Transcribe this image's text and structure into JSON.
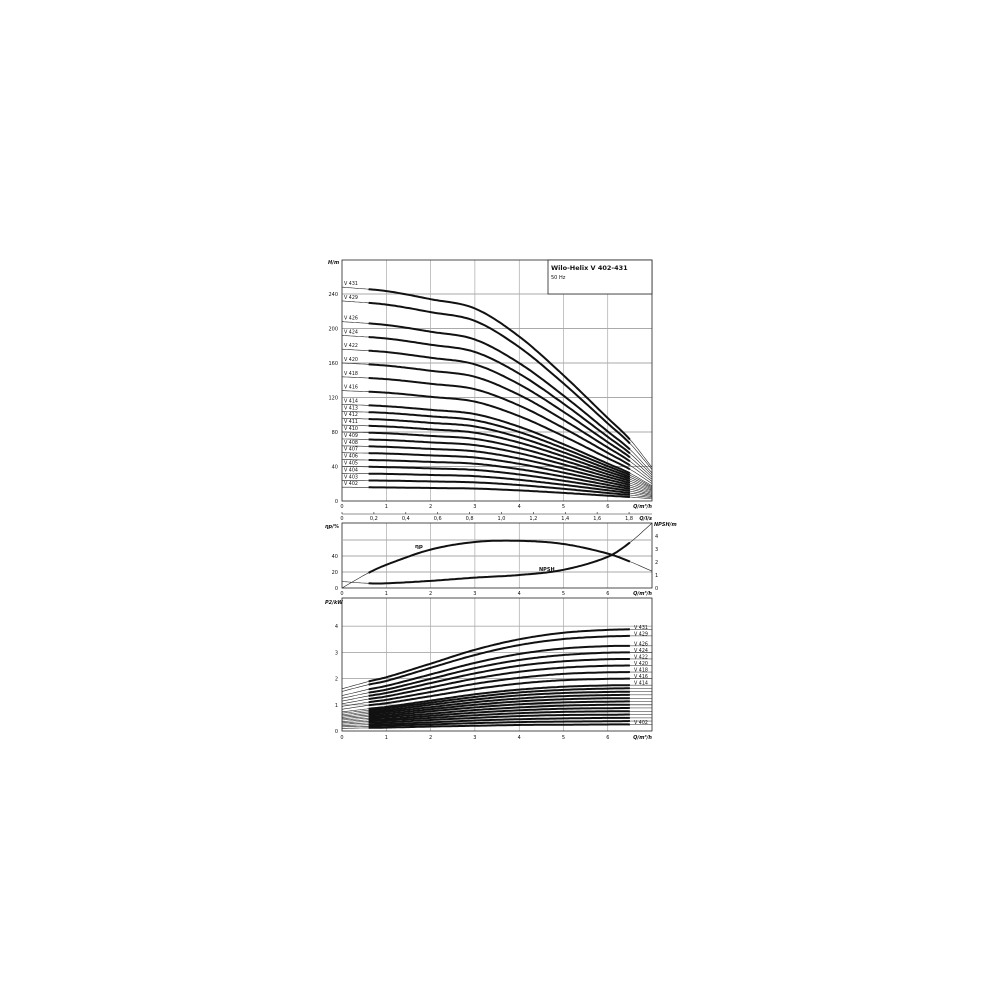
{
  "legend_box": {
    "title": "Wilo-Helix V 402-431",
    "subtitle": "50 Hz"
  },
  "chart_data": [
    {
      "type": "line",
      "ylabel": "H/m",
      "xlabel": "Q/m³/h",
      "secondary_xlabel": "Q/l/s",
      "xlim": [
        0,
        7
      ],
      "ylim": [
        0,
        250
      ],
      "grid": true,
      "x_ticks": [
        "0",
        "1",
        "2",
        "3",
        "4",
        "5",
        "6"
      ],
      "y_ticks": [
        "0",
        "40",
        "80",
        "120",
        "160",
        "200",
        "240"
      ],
      "secondary_x_ticks": [
        "0",
        "0,2",
        "0,4",
        "0,6",
        "0,8",
        "1,0",
        "1,2",
        "1,4",
        "1,6",
        "1,8"
      ],
      "x": [
        0,
        1,
        2,
        3,
        4,
        5,
        6,
        6.5,
        7
      ],
      "series": [
        {
          "name": "V 402",
          "values": [
            16,
            15.7,
            15.1,
            14.4,
            12.3,
            9.4,
            6.2,
            4.6,
            2.5
          ]
        },
        {
          "name": "V 403",
          "values": [
            24,
            23.6,
            22.7,
            21.6,
            18.5,
            14.1,
            9.3,
            6.9,
            3.8
          ]
        },
        {
          "name": "V 404",
          "values": [
            32,
            31.4,
            30.2,
            28.8,
            24.6,
            18.8,
            12.4,
            9.2,
            5
          ]
        },
        {
          "name": "V 405",
          "values": [
            40,
            39.3,
            37.8,
            36,
            30.8,
            23.5,
            15.5,
            11.5,
            6.3
          ]
        },
        {
          "name": "V 406",
          "values": [
            48,
            47.1,
            45.3,
            43.2,
            36.9,
            28.2,
            18.6,
            13.8,
            7.5
          ]
        },
        {
          "name": "V 407",
          "values": [
            56,
            55,
            52.9,
            50.4,
            43.1,
            32.9,
            21.7,
            16.1,
            8.8
          ]
        },
        {
          "name": "V 408",
          "values": [
            64,
            62.8,
            60.4,
            57.6,
            49.2,
            37.6,
            24.8,
            18.4,
            10
          ]
        },
        {
          "name": "V 409",
          "values": [
            72,
            70.7,
            68,
            64.8,
            55.4,
            42.3,
            27.9,
            20.7,
            11.3
          ]
        },
        {
          "name": "V 410",
          "values": [
            80,
            78.5,
            75.5,
            72,
            61.5,
            47,
            31,
            23,
            12.5
          ]
        },
        {
          "name": "V 411",
          "values": [
            88,
            86.4,
            83.1,
            79.2,
            67.7,
            51.7,
            34.1,
            25.3,
            13.8
          ]
        },
        {
          "name": "V 412",
          "values": [
            96,
            94.2,
            90.6,
            86.4,
            73.8,
            56.4,
            37.2,
            27.6,
            15
          ]
        },
        {
          "name": "V 413",
          "values": [
            104,
            102.1,
            98.2,
            93.6,
            80,
            61.1,
            40.3,
            29.9,
            16.3
          ]
        },
        {
          "name": "V 414",
          "values": [
            112,
            109.9,
            105.7,
            100.8,
            86.1,
            65.8,
            43.4,
            32.2,
            17.5
          ]
        },
        {
          "name": "V 416",
          "values": [
            128,
            125.6,
            120.8,
            115.2,
            98.4,
            75.2,
            49.6,
            36.8,
            20
          ]
        },
        {
          "name": "V 418",
          "values": [
            144,
            141.3,
            135.9,
            129.6,
            110.7,
            84.6,
            55.8,
            41.4,
            22.5
          ]
        },
        {
          "name": "V 420",
          "values": [
            160,
            157,
            151,
            144,
            123,
            94,
            62,
            46,
            25
          ]
        },
        {
          "name": "V 422",
          "values": [
            176,
            172.7,
            166.1,
            158.4,
            135.3,
            103.4,
            68.2,
            50.6,
            27.5
          ]
        },
        {
          "name": "V 424",
          "values": [
            192,
            188.4,
            181.2,
            172.8,
            147.6,
            112.8,
            74.4,
            55.2,
            30
          ]
        },
        {
          "name": "V 426",
          "values": [
            208,
            204.1,
            196.3,
            187.2,
            159.9,
            122.2,
            80.6,
            59.8,
            32.5
          ]
        },
        {
          "name": "V 429",
          "values": [
            232,
            227.7,
            219,
            208.8,
            178.4,
            136.3,
            89.9,
            66.7,
            36.3
          ]
        },
        {
          "name": "V 431",
          "values": [
            248,
            243.4,
            234,
            223.2,
            190.7,
            145.7,
            96.1,
            71.3,
            38.8
          ]
        }
      ]
    },
    {
      "type": "line",
      "ylabel": "ηp/%",
      "y2label": "NPSH/m",
      "xlabel": "Q/m³/h",
      "xlim": [
        0,
        7
      ],
      "ylim": [
        0,
        60
      ],
      "y2lim": [
        0,
        5
      ],
      "grid": true,
      "x_ticks": [
        "0",
        "1",
        "2",
        "3",
        "4",
        "5",
        "6"
      ],
      "y_ticks": [
        "0",
        "20",
        "40"
      ],
      "y2_ticks": [
        "0",
        "1",
        "2",
        "3",
        "4"
      ],
      "series": [
        {
          "name": "ηp",
          "axis": "left",
          "x": [
            0,
            0.6,
            1,
            2,
            3,
            4,
            5,
            6,
            6.5,
            7
          ],
          "values": [
            0,
            19,
            29,
            48,
            57.5,
            59,
            55,
            43,
            33,
            21
          ]
        },
        {
          "name": "NPSH",
          "axis": "right",
          "x": [
            0,
            0.6,
            1,
            2,
            3,
            4,
            5,
            6,
            6.5,
            7
          ],
          "values": [
            0.5,
            0.36,
            0.36,
            0.55,
            0.8,
            1.0,
            1.4,
            2.4,
            3.5,
            5.0
          ]
        }
      ]
    },
    {
      "type": "line",
      "ylabel": "P2/kW",
      "xlabel": "Q/m³/h",
      "xlim": [
        0,
        7
      ],
      "ylim": [
        0,
        5
      ],
      "grid": true,
      "x_ticks": [
        "0",
        "1",
        "2",
        "3",
        "4",
        "5",
        "6"
      ],
      "y_ticks": [
        "0",
        "1",
        "2",
        "3",
        "4"
      ],
      "x": [
        0,
        0.6,
        1,
        2,
        3,
        4,
        5,
        6,
        6.5
      ],
      "labeled_series": [
        "V 431",
        "V 429",
        "V 426",
        "V 424",
        "V 422",
        "V 420",
        "V 418",
        "V 416",
        "V 414",
        "V 402"
      ],
      "series": [
        {
          "name": "V 402",
          "values": [
            0.1,
            0.12,
            0.13,
            0.17,
            0.2,
            0.23,
            0.24,
            0.25,
            0.25
          ]
        },
        {
          "name": "V 403",
          "values": [
            0.16,
            0.18,
            0.2,
            0.25,
            0.3,
            0.34,
            0.36,
            0.37,
            0.38
          ]
        },
        {
          "name": "V 404",
          "values": [
            0.21,
            0.24,
            0.26,
            0.33,
            0.4,
            0.45,
            0.48,
            0.5,
            0.5
          ]
        },
        {
          "name": "V 405",
          "values": [
            0.26,
            0.31,
            0.33,
            0.42,
            0.5,
            0.57,
            0.61,
            0.62,
            0.63
          ]
        },
        {
          "name": "V 406",
          "values": [
            0.31,
            0.37,
            0.4,
            0.5,
            0.6,
            0.68,
            0.73,
            0.75,
            0.75
          ]
        },
        {
          "name": "V 407",
          "values": [
            0.36,
            0.43,
            0.46,
            0.58,
            0.7,
            0.79,
            0.85,
            0.87,
            0.88
          ]
        },
        {
          "name": "V 408",
          "values": [
            0.42,
            0.49,
            0.53,
            0.66,
            0.8,
            0.9,
            0.97,
            1.0,
            1.0
          ]
        },
        {
          "name": "V 409",
          "values": [
            0.47,
            0.55,
            0.59,
            0.75,
            0.9,
            1.02,
            1.09,
            1.12,
            1.13
          ]
        },
        {
          "name": "V 410",
          "values": [
            0.52,
            0.61,
            0.66,
            0.83,
            1.0,
            1.13,
            1.21,
            1.25,
            1.25
          ]
        },
        {
          "name": "V 411",
          "values": [
            0.57,
            0.67,
            0.73,
            0.91,
            1.1,
            1.24,
            1.33,
            1.37,
            1.38
          ]
        },
        {
          "name": "V 412",
          "values": [
            0.62,
            0.73,
            0.79,
            1.0,
            1.2,
            1.36,
            1.45,
            1.49,
            1.5
          ]
        },
        {
          "name": "V 413",
          "values": [
            0.68,
            0.79,
            0.86,
            1.08,
            1.3,
            1.47,
            1.57,
            1.62,
            1.63
          ]
        },
        {
          "name": "V 414",
          "values": [
            0.73,
            0.85,
            0.92,
            1.16,
            1.4,
            1.58,
            1.69,
            1.74,
            1.75
          ]
        },
        {
          "name": "V 416",
          "values": [
            0.83,
            0.98,
            1.06,
            1.33,
            1.6,
            1.81,
            1.94,
            1.99,
            2.0
          ]
        },
        {
          "name": "V 418",
          "values": [
            0.94,
            1.1,
            1.19,
            1.49,
            1.8,
            2.03,
            2.18,
            2.24,
            2.25
          ]
        },
        {
          "name": "V 420",
          "values": [
            1.04,
            1.22,
            1.32,
            1.66,
            2.0,
            2.26,
            2.42,
            2.49,
            2.5
          ]
        },
        {
          "name": "V 422",
          "values": [
            1.14,
            1.34,
            1.45,
            1.83,
            2.2,
            2.49,
            2.66,
            2.74,
            2.75
          ]
        },
        {
          "name": "V 424",
          "values": [
            1.25,
            1.46,
            1.58,
            1.99,
            2.4,
            2.71,
            2.9,
            2.99,
            3.0
          ]
        },
        {
          "name": "V 426",
          "values": [
            1.35,
            1.59,
            1.72,
            2.16,
            2.6,
            2.94,
            3.15,
            3.24,
            3.25
          ]
        },
        {
          "name": "V 429",
          "values": [
            1.51,
            1.77,
            1.91,
            2.41,
            2.9,
            3.28,
            3.51,
            3.61,
            3.63
          ]
        },
        {
          "name": "V 431",
          "values": [
            1.61,
            1.89,
            2.05,
            2.57,
            3.1,
            3.5,
            3.75,
            3.86,
            3.88
          ]
        }
      ]
    }
  ]
}
